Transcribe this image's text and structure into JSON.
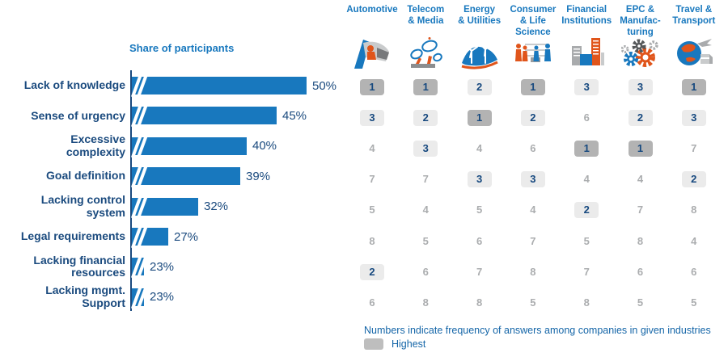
{
  "chart_data": [
    {
      "type": "bar",
      "orientation": "horizontal",
      "title": "Share of participants",
      "categories": [
        "Lack of knowledge",
        "Sense of urgency",
        "Excessive\ncomplexity",
        "Goal definition",
        "Lacking control\nsystem",
        "Legal requirements",
        "Lacking financial\nresources",
        "Lacking mgmt.\nSupport"
      ],
      "values": [
        50,
        45,
        40,
        39,
        32,
        27,
        23,
        23
      ],
      "unit": "%",
      "xlim": [
        20,
        52
      ],
      "axis_break": true,
      "bar_color": "#1878BE"
    },
    {
      "type": "table",
      "columns": [
        "Automotive",
        "Telecom\n& Media",
        "Energy\n& Utilities",
        "Consumer\n& Life\nScience",
        "Financial\nInstitutions",
        "EPC &\nManufac-\nturing",
        "Travel &\nTransport"
      ],
      "column_icons": [
        "automotive-icon",
        "satellite-dish-icon",
        "wind-turbine-icon",
        "shoppers-icon",
        "buildings-icon",
        "gears-icon",
        "globe-transport-icon"
      ],
      "row_labels": [
        "Lack of knowledge",
        "Sense of urgency",
        "Excessive complexity",
        "Goal definition",
        "Lacking control system",
        "Legal requirements",
        "Lacking financial resources",
        "Lacking mgmt. Support"
      ],
      "rows": [
        [
          1,
          1,
          2,
          1,
          3,
          3,
          1
        ],
        [
          3,
          2,
          1,
          2,
          6,
          2,
          3
        ],
        [
          4,
          3,
          4,
          6,
          1,
          1,
          7
        ],
        [
          7,
          7,
          3,
          3,
          4,
          4,
          2
        ],
        [
          5,
          4,
          5,
          4,
          2,
          7,
          8
        ],
        [
          8,
          5,
          6,
          7,
          5,
          8,
          4
        ],
        [
          2,
          6,
          7,
          8,
          7,
          6,
          6
        ],
        [
          6,
          8,
          8,
          5,
          8,
          5,
          5
        ]
      ],
      "highlight_rules": {
        "highest_value": 1,
        "boxed_values": [
          2,
          3
        ]
      },
      "footnote": "Numbers indicate frequency of answers among companies in given industries",
      "legend": {
        "highest_label": "Highest"
      }
    }
  ],
  "colors": {
    "bar_blue": "#1878BE",
    "header_blue": "#1878BE",
    "label_navy": "#1A4A7E",
    "highest_cell_bg": "#B3B3B3",
    "top_cell_bg": "#EBEBEB",
    "plain_number_gray": "#ABADAF",
    "footnote_blue": "#1566A8",
    "icon_orange": "#E0551B",
    "icon_gray": "#A9ABAD"
  }
}
